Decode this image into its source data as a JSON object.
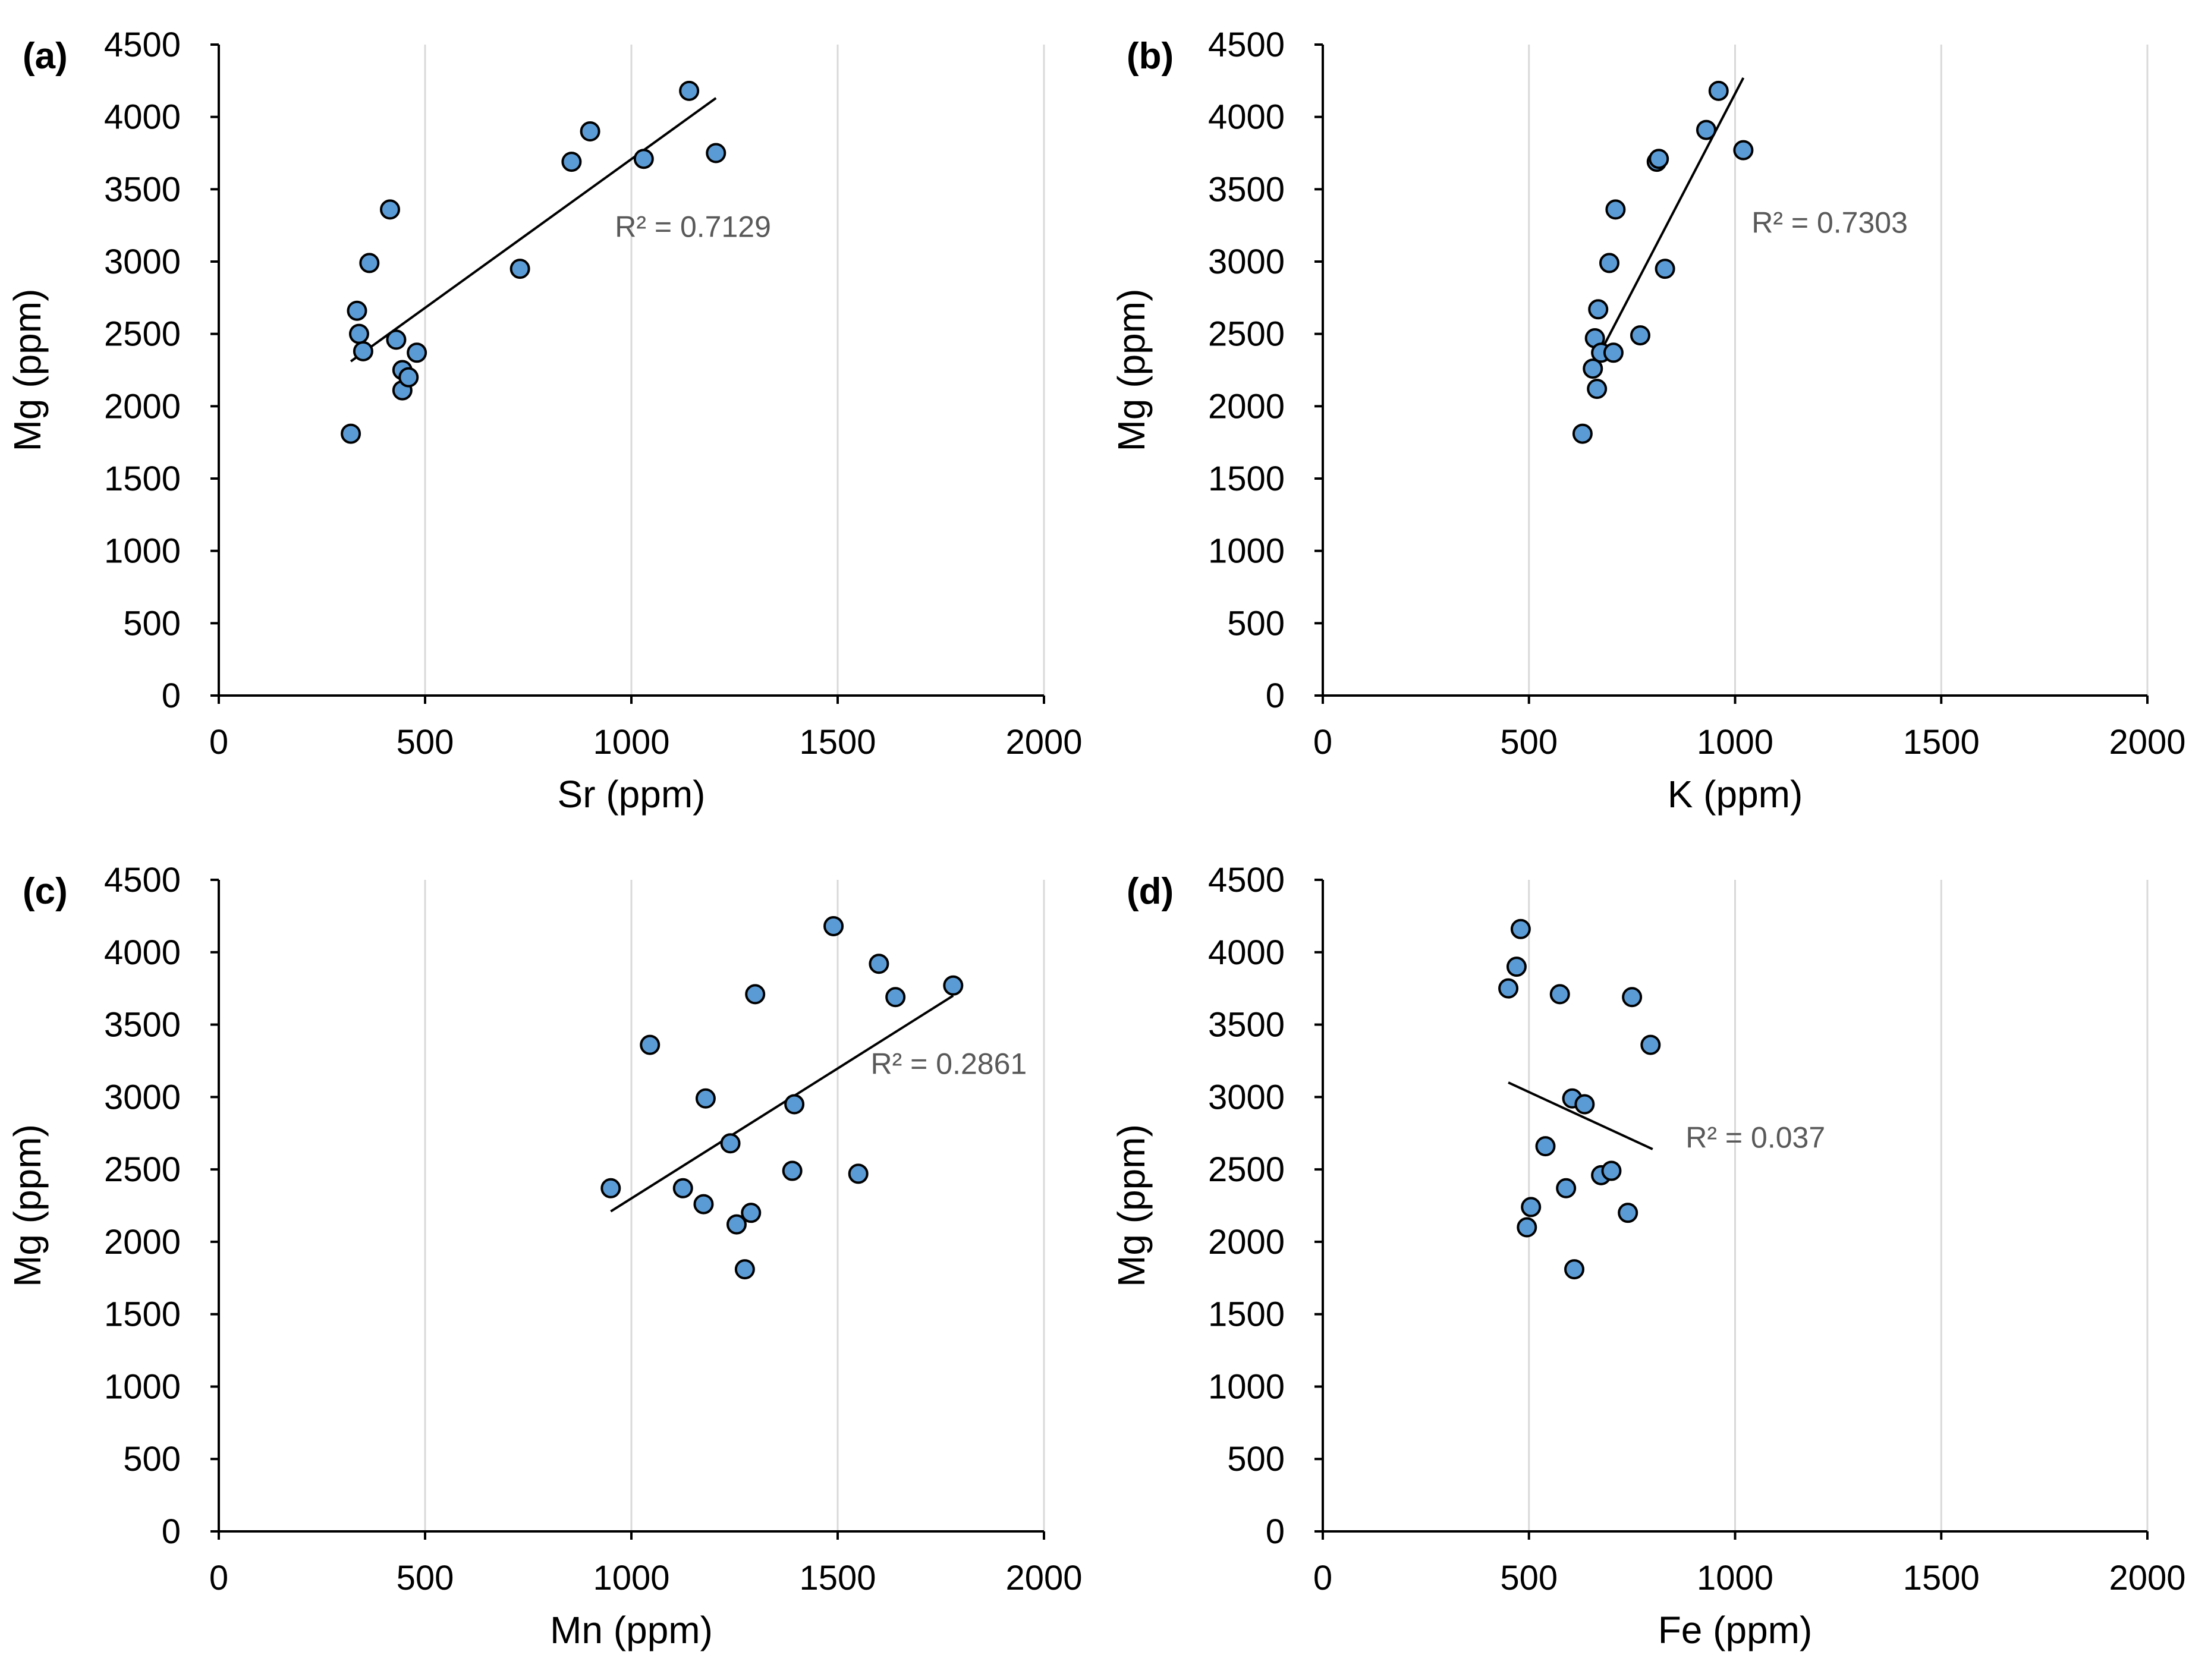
{
  "chart_data": [
    {
      "type": "scatter",
      "panel_label": "(a)",
      "xlabel": "Sr (ppm)",
      "ylabel": "Mg (ppm)",
      "xlim": [
        0,
        2000
      ],
      "ylim": [
        0,
        4500
      ],
      "xticks": [
        "0",
        "500",
        "1000",
        "1500",
        "2000"
      ],
      "yticks": [
        "0",
        "500",
        "1000",
        "1500",
        "2000",
        "2500",
        "3000",
        "3500",
        "4000",
        "4500"
      ],
      "points": [
        [
          320,
          1810
        ],
        [
          335,
          2660
        ],
        [
          340,
          2500
        ],
        [
          350,
          2380
        ],
        [
          365,
          2990
        ],
        [
          415,
          3360
        ],
        [
          430,
          2460
        ],
        [
          445,
          2250
        ],
        [
          445,
          2110
        ],
        [
          460,
          2200
        ],
        [
          480,
          2370
        ],
        [
          730,
          2950
        ],
        [
          855,
          3690
        ],
        [
          900,
          3900
        ],
        [
          1030,
          3710
        ],
        [
          1140,
          4180
        ],
        [
          1205,
          3750
        ]
      ],
      "trendline": [
        [
          320,
          2310
        ],
        [
          1205,
          4130
        ]
      ],
      "r2_text": "R² = 0.7129",
      "r2_anchor": [
        960,
        3170
      ]
    },
    {
      "type": "scatter",
      "panel_label": "(b)",
      "xlabel": "K (ppm)",
      "ylabel": "Mg (ppm)",
      "xlim": [
        0,
        2000
      ],
      "ylim": [
        0,
        4500
      ],
      "xticks": [
        "0",
        "500",
        "1000",
        "1500",
        "2000"
      ],
      "yticks": [
        "0",
        "500",
        "1000",
        "1500",
        "2000",
        "2500",
        "3000",
        "3500",
        "4000",
        "4500"
      ],
      "points": [
        [
          630,
          1810
        ],
        [
          655,
          2260
        ],
        [
          660,
          2470
        ],
        [
          665,
          2120
        ],
        [
          668,
          2670
        ],
        [
          675,
          2370
        ],
        [
          695,
          2990
        ],
        [
          705,
          2370
        ],
        [
          710,
          3360
        ],
        [
          770,
          2490
        ],
        [
          810,
          3690
        ],
        [
          815,
          3710
        ],
        [
          830,
          2950
        ],
        [
          930,
          3910
        ],
        [
          960,
          4180
        ],
        [
          1020,
          3770
        ]
      ],
      "trendline": [
        [
          660,
          2300
        ],
        [
          1020,
          4270
        ]
      ],
      "r2_text": "R² = 0.7303",
      "r2_anchor": [
        1040,
        3200
      ]
    },
    {
      "type": "scatter",
      "panel_label": "(c)",
      "xlabel": "Mn (ppm)",
      "ylabel": "Mg (ppm)",
      "xlim": [
        0,
        2000
      ],
      "ylim": [
        0,
        4500
      ],
      "xticks": [
        "0",
        "500",
        "1000",
        "1500",
        "2000"
      ],
      "yticks": [
        "0",
        "500",
        "1000",
        "1500",
        "2000",
        "2500",
        "3000",
        "3500",
        "4000",
        "4500"
      ],
      "points": [
        [
          950,
          2370
        ],
        [
          1045,
          3360
        ],
        [
          1125,
          2370
        ],
        [
          1175,
          2260
        ],
        [
          1180,
          2990
        ],
        [
          1240,
          2680
        ],
        [
          1255,
          2120
        ],
        [
          1275,
          1810
        ],
        [
          1290,
          2200
        ],
        [
          1300,
          3710
        ],
        [
          1390,
          2490
        ],
        [
          1395,
          2950
        ],
        [
          1490,
          4180
        ],
        [
          1550,
          2470
        ],
        [
          1600,
          3920
        ],
        [
          1640,
          3690
        ],
        [
          1780,
          3770
        ]
      ],
      "trendline": [
        [
          950,
          2210
        ],
        [
          1780,
          3700
        ]
      ],
      "r2_text": "R² = 0.2861",
      "r2_anchor": [
        1580,
        3160
      ]
    },
    {
      "type": "scatter",
      "panel_label": "(d)",
      "xlabel": "Fe (ppm)",
      "ylabel": "Mg (ppm)",
      "xlim": [
        0,
        2000
      ],
      "ylim": [
        0,
        4500
      ],
      "xticks": [
        "0",
        "500",
        "1000",
        "1500",
        "2000"
      ],
      "yticks": [
        "0",
        "500",
        "1000",
        "1500",
        "2000",
        "2500",
        "3000",
        "3500",
        "4000",
        "4500"
      ],
      "points": [
        [
          450,
          3750
        ],
        [
          470,
          3900
        ],
        [
          480,
          4160
        ],
        [
          495,
          2100
        ],
        [
          505,
          2240
        ],
        [
          540,
          2660
        ],
        [
          575,
          3710
        ],
        [
          590,
          2370
        ],
        [
          605,
          2990
        ],
        [
          610,
          1810
        ],
        [
          635,
          2950
        ],
        [
          675,
          2460
        ],
        [
          700,
          2490
        ],
        [
          740,
          2200
        ],
        [
          750,
          3690
        ],
        [
          795,
          3360
        ]
      ],
      "trendline": [
        [
          450,
          3100
        ],
        [
          800,
          2640
        ]
      ],
      "r2_text": "R² = 0.037",
      "r2_anchor": [
        880,
        2650
      ]
    }
  ]
}
